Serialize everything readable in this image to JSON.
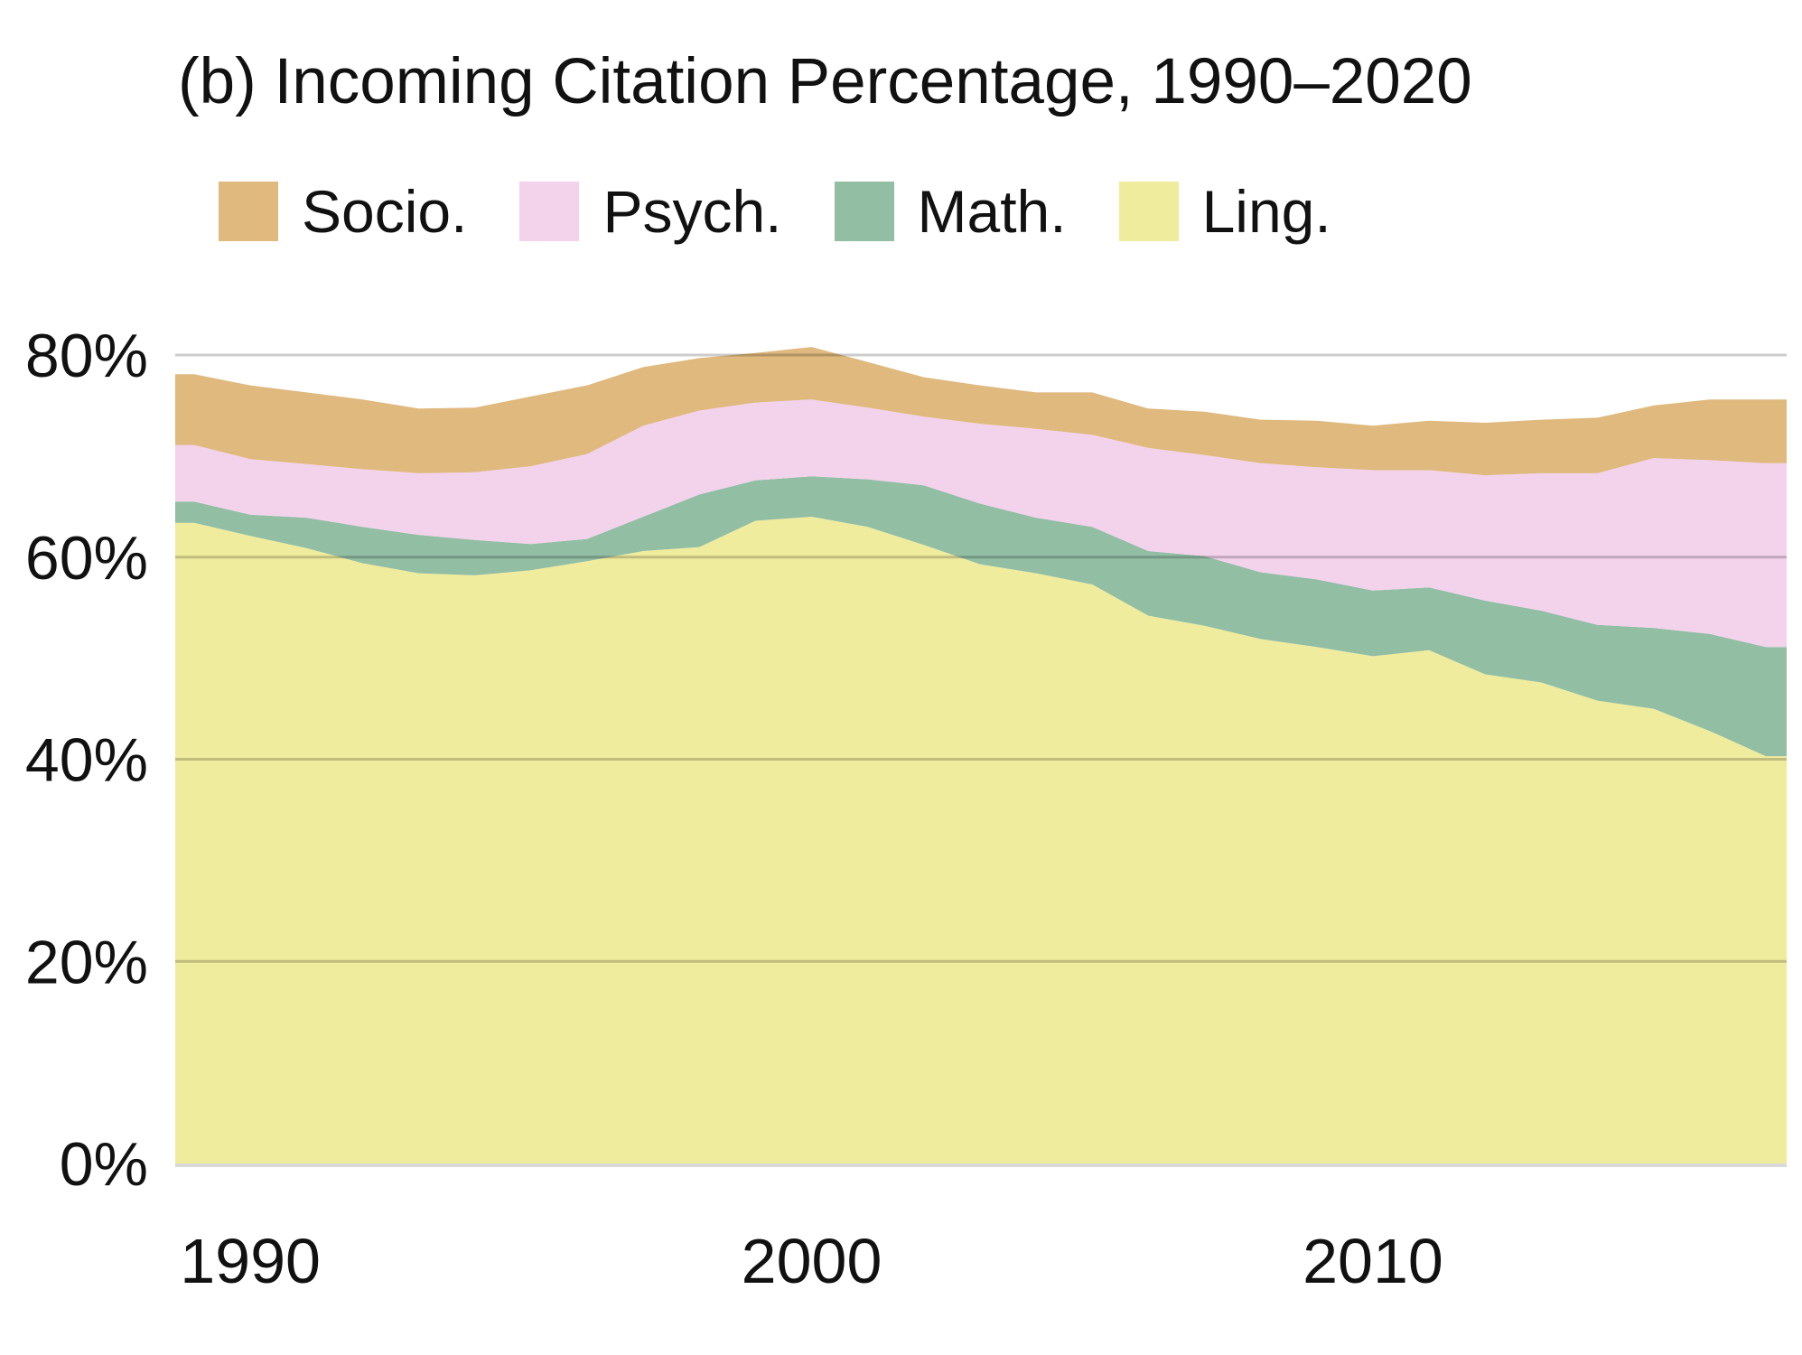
{
  "chart_data": {
    "type": "area",
    "stacked": true,
    "title": "(b) Incoming Citation Percentage, 1990–2020",
    "x_axis_label": "",
    "y_axis_label": "",
    "years": [
      1989,
      1990,
      1991,
      1992,
      1993,
      1994,
      1995,
      1996,
      1997,
      1998,
      1999,
      2000,
      2001,
      2002,
      2003,
      2004,
      2005,
      2006,
      2007,
      2008,
      2009,
      2010,
      2011,
      2012,
      2013,
      2014,
      2015,
      2016,
      2017
    ],
    "series": [
      {
        "name": "Ling.",
        "color": "#EFEC9D",
        "values": [
          63.4,
          62.1,
          60.9,
          59.4,
          58.4,
          58.2,
          58.7,
          59.6,
          60.6,
          61.0,
          63.6,
          64.0,
          63.0,
          61.2,
          59.3,
          58.4,
          57.3,
          54.2,
          53.2,
          51.9,
          51.1,
          50.2,
          50.8,
          48.4,
          47.6,
          45.8,
          45.0,
          42.8,
          40.3
        ]
      },
      {
        "name": "Math.",
        "color": "#92BEA4",
        "values": [
          2.1,
          2.1,
          3.0,
          3.6,
          3.8,
          3.5,
          2.6,
          2.2,
          3.4,
          5.2,
          4.0,
          4.0,
          4.7,
          5.9,
          6.0,
          5.5,
          5.7,
          6.4,
          6.9,
          6.6,
          6.7,
          6.5,
          6.2,
          7.3,
          7.1,
          7.5,
          8.0,
          9.6,
          10.8
        ]
      },
      {
        "name": "Psych.",
        "color": "#F3D2EC",
        "values": [
          5.6,
          5.5,
          5.3,
          5.7,
          6.1,
          6.7,
          7.7,
          8.4,
          9.0,
          8.3,
          7.7,
          7.6,
          7.1,
          6.8,
          7.9,
          8.8,
          9.1,
          10.2,
          10.0,
          10.8,
          11.1,
          11.9,
          11.6,
          12.4,
          13.6,
          15.0,
          16.8,
          17.2,
          18.2
        ]
      },
      {
        "name": "Socio.",
        "color": "#DFB97E",
        "values": [
          7.0,
          7.3,
          7.1,
          6.9,
          6.4,
          6.4,
          6.9,
          6.8,
          5.8,
          5.2,
          4.9,
          5.2,
          4.5,
          3.9,
          3.8,
          3.6,
          4.2,
          3.9,
          4.3,
          4.3,
          4.6,
          4.4,
          4.9,
          5.2,
          5.3,
          5.5,
          5.2,
          6.0,
          6.3
        ]
      }
    ],
    "legend": [
      "Socio.",
      "Psych.",
      "Math.",
      "Ling."
    ],
    "legend_position": "top",
    "grid": true,
    "ylim": [
      0,
      85
    ],
    "y_ticks": [
      {
        "value": 0,
        "label": "0%"
      },
      {
        "value": 20,
        "label": "20%"
      },
      {
        "value": 40,
        "label": "40%"
      },
      {
        "value": 60,
        "label": "60%"
      },
      {
        "value": 80,
        "label": "80%"
      }
    ],
    "x_ticks": [
      {
        "value": 1990,
        "label": "1990"
      },
      {
        "value": 2000,
        "label": "2000"
      },
      {
        "value": 2010,
        "label": "2010"
      }
    ]
  }
}
